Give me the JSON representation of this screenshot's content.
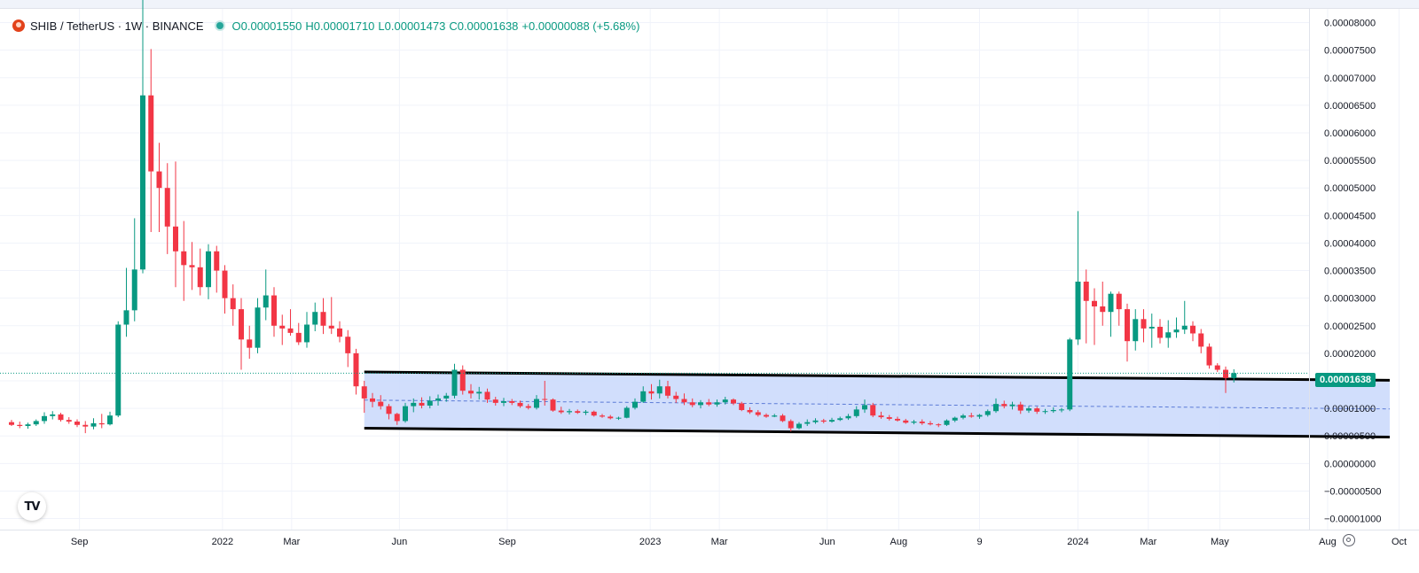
{
  "legend": {
    "symbol": "SHIB / TetherUS · 1W · BINANCE",
    "open": "O0.00001550",
    "high": "H0.00001710",
    "low": "L0.00001473",
    "close": "C0.00001638",
    "change": "+0.00000088 (+5.68%)"
  },
  "last_price_label": "0.00001638",
  "colors": {
    "up": "#089981",
    "down": "#f23645",
    "channel_fill": "#c9d8fb",
    "channel_line": "#000000",
    "midline": "#5b7bd6"
  },
  "icons": {
    "logo": "shib-logo-icon",
    "tradingview": "tradingview-logo-icon",
    "settings": "gear-icon"
  },
  "chart_data": {
    "type": "candlestick",
    "symbol": "SHIB/USDT",
    "interval": "1W",
    "exchange": "BINANCE",
    "ylim": [
      -1.2e-05,
      8.25e-05
    ],
    "yticks": [
      "0.00008000",
      "0.00007500",
      "0.00007000",
      "0.00006500",
      "0.00006000",
      "0.00005500",
      "0.00005000",
      "0.00004500",
      "0.00004000",
      "0.00003500",
      "0.00003000",
      "0.00002500",
      "0.00002000",
      "0.00001500",
      "0.00001000",
      "0.00000500",
      "0.00000000",
      "−0.00000500",
      "−0.00001000"
    ],
    "ytick_values": [
      8e-05,
      7.5e-05,
      7e-05,
      6.5e-05,
      6e-05,
      5.5e-05,
      5e-05,
      4.5e-05,
      4e-05,
      3.5e-05,
      3e-05,
      2.5e-05,
      2e-05,
      1.5e-05,
      1e-05,
      5e-06,
      0,
      -5e-06,
      -1e-05
    ],
    "xticks": [
      {
        "label": "Sep",
        "date": "2021-09-01"
      },
      {
        "label": "2022",
        "date": "2022-01-01"
      },
      {
        "label": "Mar",
        "date": "2022-03-01"
      },
      {
        "label": "Jun",
        "date": "2022-06-01"
      },
      {
        "label": "Sep",
        "date": "2022-09-01"
      },
      {
        "label": "2023",
        "date": "2023-01-01"
      },
      {
        "label": "Mar",
        "date": "2023-03-01"
      },
      {
        "label": "Jun",
        "date": "2023-06-01"
      },
      {
        "label": "Aug",
        "date": "2023-08-01"
      },
      {
        "label": "9",
        "date": "2023-10-09"
      },
      {
        "label": "2024",
        "date": "2024-01-01"
      },
      {
        "label": "Mar",
        "date": "2024-03-01"
      },
      {
        "label": "May",
        "date": "2024-05-01"
      },
      {
        "label": "Aug",
        "date": "2024-08-01"
      },
      {
        "label": "Oct",
        "date": "2024-10-01"
      }
    ],
    "first_candle_date": "2021-07-05",
    "candles": [
      [
        7.5e-06,
        7.9e-06,
        6.8e-06,
        7e-06
      ],
      [
        7e-06,
        7.6e-06,
        6.4e-06,
        6.8e-06
      ],
      [
        6.8e-06,
        7.4e-06,
        6.3e-06,
        7.1e-06
      ],
      [
        7.1e-06,
        8e-06,
        6.8e-06,
        7.7e-06
      ],
      [
        7.7e-06,
        9.3e-06,
        7.2e-06,
        8.6e-06
      ],
      [
        8.6e-06,
        9.5e-06,
        8e-06,
        8.9e-06
      ],
      [
        8.9e-06,
        9.2e-06,
        7.6e-06,
        7.9e-06
      ],
      [
        7.9e-06,
        8.4e-06,
        7.2e-06,
        7.6e-06
      ],
      [
        7.6e-06,
        8e-06,
        6.6e-06,
        7e-06
      ],
      [
        7e-06,
        7.7e-06,
        5.5e-06,
        6.7e-06
      ],
      [
        6.7e-06,
        8.2e-06,
        6.2e-06,
        7.3e-06
      ],
      [
        7.3e-06,
        9e-06,
        6.4e-06,
        7.1e-06
      ],
      [
        7.1e-06,
        9.4e-06,
        6.9e-06,
        8.7e-06
      ],
      [
        8.7e-06,
        2.58e-05,
        8.4e-06,
        2.52e-05
      ],
      [
        2.52e-05,
        3.55e-05,
        2.3e-05,
        2.78e-05
      ],
      [
        2.78e-05,
        4.45e-05,
        2.58e-05,
        3.52e-05
      ],
      [
        3.52e-05,
        8.82e-05,
        3.45e-05,
        6.68e-05
      ],
      [
        6.68e-05,
        7.52e-05,
        4.2e-05,
        5.3e-05
      ],
      [
        5.3e-05,
        5.82e-05,
        4.2e-05,
        5e-05
      ],
      [
        5e-05,
        5.45e-05,
        3.8e-05,
        4.3e-05
      ],
      [
        4.3e-05,
        5.48e-05,
        3.2e-05,
        3.85e-05
      ],
      [
        3.85e-05,
        4.4e-05,
        2.95e-05,
        3.6e-05
      ],
      [
        3.6e-05,
        4.02e-05,
        3.15e-05,
        3.56e-05
      ],
      [
        3.56e-05,
        3.9e-05,
        3.05e-05,
        3.2e-05
      ],
      [
        3.2e-05,
        3.98e-05,
        2.98e-05,
        3.85e-05
      ],
      [
        3.85e-05,
        3.95e-05,
        3.1e-05,
        3.5e-05
      ],
      [
        3.5e-05,
        3.6e-05,
        2.72e-05,
        3e-05
      ],
      [
        3e-05,
        3.25e-05,
        2.5e-05,
        2.8e-05
      ],
      [
        2.8e-05,
        3e-05,
        1.7e-05,
        2.25e-05
      ],
      [
        2.25e-05,
        2.5e-05,
        1.9e-05,
        2.1e-05
      ],
      [
        2.1e-05,
        3e-05,
        2e-05,
        2.83e-05
      ],
      [
        2.83e-05,
        3.52e-05,
        2.6e-05,
        3.05e-05
      ],
      [
        3.05e-05,
        3.2e-05,
        2.3e-05,
        2.5e-05
      ],
      [
        2.5e-05,
        2.7e-05,
        2.15e-05,
        2.45e-05
      ],
      [
        2.45e-05,
        2.8e-05,
        2.32e-05,
        2.37e-05
      ],
      [
        2.37e-05,
        2.55e-05,
        2.15e-05,
        2.2e-05
      ],
      [
        2.2e-05,
        2.75e-05,
        2.1e-05,
        2.52e-05
      ],
      [
        2.52e-05,
        2.92e-05,
        2.4e-05,
        2.75e-05
      ],
      [
        2.75e-05,
        3e-05,
        2.35e-05,
        2.5e-05
      ],
      [
        2.5e-05,
        3.02e-05,
        2.35e-05,
        2.45e-05
      ],
      [
        2.45e-05,
        2.58e-05,
        2.2e-05,
        2.3e-05
      ],
      [
        2.3e-05,
        2.42e-05,
        1.75e-05,
        2e-05
      ],
      [
        2e-05,
        2.08e-05,
        1.25e-05,
        1.4e-05
      ],
      [
        1.4e-05,
        1.5e-05,
        9.2e-06,
        1.18e-05
      ],
      [
        1.18e-05,
        1.28e-05,
        1.02e-05,
        1.12e-05
      ],
      [
        1.12e-05,
        1.24e-05,
        9.8e-06,
        1.04e-05
      ],
      [
        1.04e-05,
        1.08e-05,
        8e-06,
        9e-06
      ],
      [
        9e-06,
        9.2e-06,
        7e-06,
        7.7e-06
      ],
      [
        7.7e-06,
        1.1e-05,
        7.4e-06,
        1.04e-05
      ],
      [
        1.04e-05,
        1.18e-05,
        9.3e-06,
        1.1e-05
      ],
      [
        1.1e-05,
        1.2e-05,
        1e-05,
        1.05e-05
      ],
      [
        1.05e-05,
        1.22e-05,
        1e-05,
        1.14e-05
      ],
      [
        1.14e-05,
        1.25e-05,
        1.05e-05,
        1.18e-05
      ],
      [
        1.18e-05,
        1.28e-05,
        1.12e-05,
        1.23e-05
      ],
      [
        1.23e-05,
        1.81e-05,
        1.18e-05,
        1.7e-05
      ],
      [
        1.7e-05,
        1.78e-05,
        1.25e-05,
        1.32e-05
      ],
      [
        1.32e-05,
        1.44e-05,
        1.18e-05,
        1.27e-05
      ],
      [
        1.27e-05,
        1.39e-05,
        1.16e-05,
        1.3e-05
      ],
      [
        1.3e-05,
        1.36e-05,
        1.1e-05,
        1.16e-05
      ],
      [
        1.16e-05,
        1.21e-05,
        1.05e-05,
        1.1e-05
      ],
      [
        1.1e-05,
        1.19e-05,
        1.04e-05,
        1.13e-05
      ],
      [
        1.13e-05,
        1.17e-05,
        1.06e-05,
        1.1e-05
      ],
      [
        1.1e-05,
        1.14e-05,
        1.01e-05,
        1.04e-05
      ],
      [
        1.04e-05,
        1.08e-05,
        9.8e-06,
        1.01e-05
      ],
      [
        1.01e-05,
        1.24e-05,
        9.8e-06,
        1.17e-05
      ],
      [
        1.17e-05,
        1.5e-05,
        1.05e-05,
        1.16e-05
      ],
      [
        1.16e-05,
        1.18e-05,
        9.4e-06,
        9.6e-06
      ],
      [
        9.6e-06,
        1.03e-05,
        9e-06,
        9.3e-06
      ],
      [
        9.3e-06,
        9.9e-06,
        8.9e-06,
        9.5e-06
      ],
      [
        9.5e-06,
        9.8e-06,
        9e-06,
        9.2e-06
      ],
      [
        9.2e-06,
        9.7e-06,
        8.8e-06,
        9.4e-06
      ],
      [
        9.4e-06,
        9.6e-06,
        8.5e-06,
        8.7e-06
      ],
      [
        8.7e-06,
        9e-06,
        8.3e-06,
        8.5e-06
      ],
      [
        8.5e-06,
        8.8e-06,
        8e-06,
        8.2e-06
      ],
      [
        8.2e-06,
        8.5e-06,
        7.9e-06,
        8.3e-06
      ],
      [
        8.3e-06,
        1.04e-05,
        8.2e-06,
        1.01e-05
      ],
      [
        1.01e-05,
        1.18e-05,
        9.8e-06,
        1.12e-05
      ],
      [
        1.12e-05,
        1.4e-05,
        1.1e-05,
        1.31e-05
      ],
      [
        1.31e-05,
        1.44e-05,
        1.16e-05,
        1.27e-05
      ],
      [
        1.27e-05,
        1.52e-05,
        1.18e-05,
        1.4e-05
      ],
      [
        1.4e-05,
        1.5e-05,
        1.18e-05,
        1.23e-05
      ],
      [
        1.23e-05,
        1.3e-05,
        1.1e-05,
        1.17e-05
      ],
      [
        1.17e-05,
        1.27e-05,
        1.06e-05,
        1.11e-05
      ],
      [
        1.11e-05,
        1.18e-05,
        1.02e-05,
        1.06e-05
      ],
      [
        1.06e-05,
        1.15e-05,
        1e-05,
        1.11e-05
      ],
      [
        1.11e-05,
        1.17e-05,
        1.04e-05,
        1.07e-05
      ],
      [
        1.07e-05,
        1.16e-05,
        1.03e-05,
        1.11e-05
      ],
      [
        1.11e-05,
        1.21e-05,
        1.07e-05,
        1.16e-05
      ],
      [
        1.16e-05,
        1.18e-05,
        1.06e-05,
        1.09e-05
      ],
      [
        1.09e-05,
        1.12e-05,
        9.5e-06,
        9.7e-06
      ],
      [
        9.7e-06,
        1.02e-05,
        9e-06,
        9.3e-06
      ],
      [
        9.3e-06,
        9.7e-06,
        8.5e-06,
        8.8e-06
      ],
      [
        8.8e-06,
        9.1e-06,
        8.3e-06,
        8.5e-06
      ],
      [
        8.5e-06,
        9e-06,
        8.4e-06,
        8.7e-06
      ],
      [
        8.7e-06,
        9e-06,
        7.5e-06,
        7.7e-06
      ],
      [
        7.7e-06,
        8e-06,
        5.8e-06,
        6.4e-06
      ],
      [
        6.4e-06,
        7.5e-06,
        6.2e-06,
        7.2e-06
      ],
      [
        7.2e-06,
        8e-06,
        6.8e-06,
        7.5e-06
      ],
      [
        7.5e-06,
        8.2e-06,
        7.2e-06,
        7.8e-06
      ],
      [
        7.8e-06,
        8.1e-06,
        7.3e-06,
        7.6e-06
      ],
      [
        7.6e-06,
        8.3e-06,
        7.4e-06,
        7.9e-06
      ],
      [
        7.9e-06,
        8.5e-06,
        7.7e-06,
        8.2e-06
      ],
      [
        8.2e-06,
        9e-06,
        7.9e-06,
        8.6e-06
      ],
      [
        8.6e-06,
        1.04e-05,
        8.3e-06,
        9.8e-06
      ],
      [
        9.8e-06,
        1.16e-05,
        9.2e-06,
        1.06e-05
      ],
      [
        1.06e-05,
        1.1e-05,
        8.4e-06,
        8.7e-06
      ],
      [
        8.7e-06,
        9.4e-06,
        8.1e-06,
        8.4e-06
      ],
      [
        8.4e-06,
        8.8e-06,
        7.8e-06,
        8.1e-06
      ],
      [
        8.1e-06,
        8.5e-06,
        7.6e-06,
        7.8e-06
      ],
      [
        7.8e-06,
        8.1e-06,
        7.2e-06,
        7.4e-06
      ],
      [
        7.4e-06,
        7.9e-06,
        7.1e-06,
        7.6e-06
      ],
      [
        7.6e-06,
        8e-06,
        7e-06,
        7.3e-06
      ],
      [
        7.3e-06,
        7.7e-06,
        6.9e-06,
        7.1e-06
      ],
      [
        7.1e-06,
        7.3e-06,
        6.6e-06,
        7e-06
      ],
      [
        7e-06,
        8e-06,
        6.8e-06,
        7.8e-06
      ],
      [
        7.8e-06,
        8.5e-06,
        7.5e-06,
        8.3e-06
      ],
      [
        8.3e-06,
        9e-06,
        8e-06,
        8.7e-06
      ],
      [
        8.7e-06,
        9.2e-06,
        8.3e-06,
        8.5e-06
      ],
      [
        8.5e-06,
        9e-06,
        8.1e-06,
        8.8e-06
      ],
      [
        8.8e-06,
        9.8e-06,
        8.5e-06,
        9.5e-06
      ],
      [
        9.5e-06,
        1.18e-05,
        9.2e-06,
        1.08e-05
      ],
      [
        1.08e-05,
        1.14e-05,
        1e-05,
        1.04e-05
      ],
      [
        1.04e-05,
        1.12e-05,
        9.8e-06,
        1.07e-05
      ],
      [
        1.07e-05,
        1.12e-05,
        9e-06,
        9.6e-06
      ],
      [
        9.6e-06,
        1.04e-05,
        9.2e-06,
        1e-05
      ],
      [
        1e-05,
        1.03e-05,
        9e-06,
        9.4e-06
      ],
      [
        9.4e-06,
        9.9e-06,
        9e-06,
        9.5e-06
      ],
      [
        9.5e-06,
        1.02e-05,
        9.2e-06,
        9.7e-06
      ],
      [
        9.7e-06,
        1.01e-05,
        9.3e-06,
        9.8e-06
      ],
      [
        9.8e-06,
        2.28e-05,
        9.5e-06,
        2.25e-05
      ],
      [
        2.25e-05,
        4.58e-05,
        2.15e-05,
        3.3e-05
      ],
      [
        3.3e-05,
        3.52e-05,
        2.18e-05,
        2.95e-05
      ],
      [
        2.95e-05,
        3.18e-05,
        2.15e-05,
        2.85e-05
      ],
      [
        2.85e-05,
        3.3e-05,
        2.5e-05,
        2.75e-05
      ],
      [
        2.75e-05,
        3.12e-05,
        2.3e-05,
        3.08e-05
      ],
      [
        3.08e-05,
        3.12e-05,
        2.5e-05,
        2.8e-05
      ],
      [
        2.8e-05,
        2.9e-05,
        1.85e-05,
        2.22e-05
      ],
      [
        2.22e-05,
        2.8e-05,
        2.05e-05,
        2.62e-05
      ],
      [
        2.62e-05,
        2.8e-05,
        2.2e-05,
        2.45e-05
      ],
      [
        2.45e-05,
        2.72e-05,
        2.1e-05,
        2.48e-05
      ],
      [
        2.48e-05,
        2.62e-05,
        2.18e-05,
        2.28e-05
      ],
      [
        2.28e-05,
        2.6e-05,
        2.1e-05,
        2.38e-05
      ],
      [
        2.38e-05,
        2.65e-05,
        2.28e-05,
        2.43e-05
      ],
      [
        2.43e-05,
        2.95e-05,
        2.35e-05,
        2.5e-05
      ],
      [
        2.5e-05,
        2.58e-05,
        2.22e-05,
        2.36e-05
      ],
      [
        2.36e-05,
        2.44e-05,
        2e-05,
        2.12e-05
      ],
      [
        2.12e-05,
        2.18e-05,
        1.72e-05,
        1.78e-05
      ],
      [
        1.78e-05,
        1.82e-05,
        1.66e-05,
        1.7e-05
      ],
      [
        1.7e-05,
        1.76e-05,
        1.28e-05,
        1.55e-05
      ],
      [
        1.55e-05,
        1.71e-05,
        1.47e-05,
        1.64e-05
      ]
    ],
    "channel": {
      "upper": [
        [
          "2022-05-02",
          1.66e-05
        ],
        [
          "2024-09-23",
          1.51e-05
        ]
      ],
      "lower": [
        [
          "2022-05-02",
          6.4e-06
        ],
        [
          "2024-09-23",
          4.8e-06
        ]
      ],
      "mid": [
        [
          "2022-05-02",
          1.15e-05
        ],
        [
          "2024-09-23",
          9.9e-06
        ]
      ]
    },
    "last_price": 1.638e-05,
    "grid": true
  }
}
